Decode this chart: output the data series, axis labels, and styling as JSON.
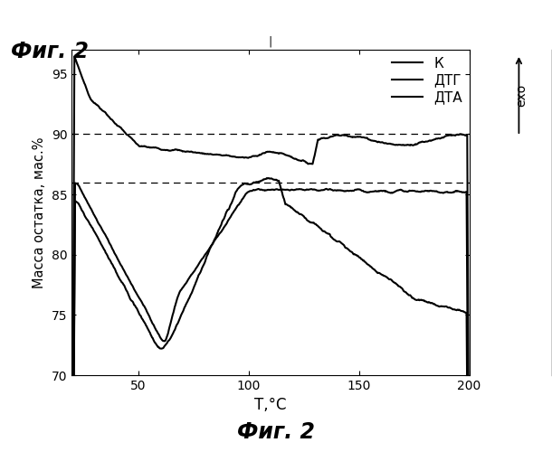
{
  "title_topleft": "Фиг. 2",
  "title_bottom": "Фиг. 2",
  "xlabel": "T,°C",
  "ylabel": "Масса остатка, мас.%",
  "exo_label": "ехо",
  "xlim": [
    20,
    200
  ],
  "ylim": [
    70,
    97
  ],
  "yticks": [
    70,
    75,
    80,
    85,
    90,
    95
  ],
  "xticks": [
    50,
    100,
    150,
    200
  ],
  "hline1": 90,
  "hline2": 86,
  "legend_labels": [
    "К",
    "ДТГ",
    "ДТА"
  ],
  "line_color": "#000000",
  "bg_color": "#ffffff"
}
